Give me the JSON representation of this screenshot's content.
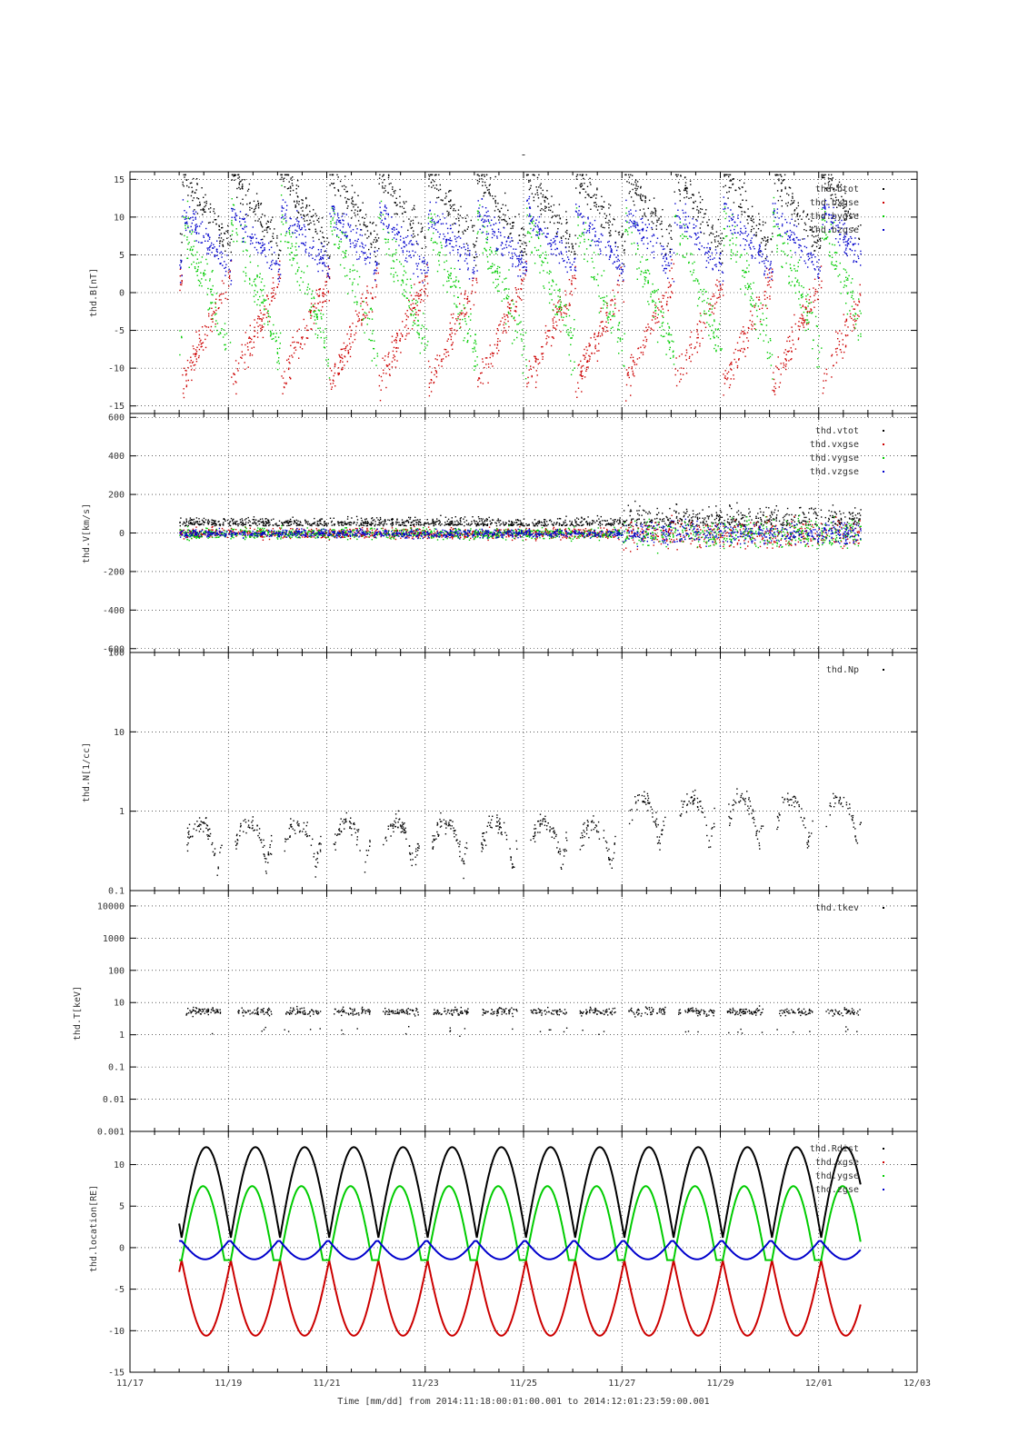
{
  "figure": {
    "title": "-",
    "x_axis": {
      "label": "Time [mm/dd]  from 2014:11:18:00:01:00.001  to  2014:12:01:23:59:00.001",
      "range_days_from_1117": [
        0,
        16
      ],
      "tick_labels": [
        "11/17",
        "11/19",
        "11/21",
        "11/23",
        "11/25",
        "11/27",
        "11/29",
        "12/01",
        "12/03"
      ],
      "minor_tick_step_hours": 12
    }
  },
  "colors": {
    "black": "#000000",
    "red": "#cc0000",
    "green": "#00cc00",
    "blue": "#0000cc"
  },
  "chart_data": [
    {
      "type": "scatter",
      "ylabel": "thd.B[nT]",
      "scale": "linear",
      "ylim": [
        -16,
        16
      ],
      "yticks": [
        15,
        10,
        5,
        0,
        -5,
        -10,
        -15
      ],
      "ytick_labels": [
        "15",
        "10",
        "5",
        "0",
        "-5",
        "-10",
        "-15"
      ],
      "grid": true,
      "legend_position": "top-right",
      "series": [
        {
          "name": "thd.btot",
          "color": "#000000",
          "model": "btot"
        },
        {
          "name": "thd.bxgse",
          "color": "#cc0000",
          "model": "bx"
        },
        {
          "name": "thd.bygse",
          "color": "#00cc00",
          "model": "by"
        },
        {
          "name": "thd.bzgse",
          "color": "#0000cc",
          "model": "bz"
        }
      ]
    },
    {
      "type": "scatter",
      "ylabel": "thd.V[km/s]",
      "scale": "linear",
      "ylim": [
        -620,
        620
      ],
      "yticks": [
        600,
        400,
        200,
        0,
        -200,
        -400,
        -600
      ],
      "ytick_labels": [
        "600",
        "400",
        "200",
        "0",
        "-200",
        "-400",
        "-600"
      ],
      "grid": true,
      "legend_position": "top-right",
      "series": [
        {
          "name": "thd.vtot",
          "color": "#000000",
          "model": "vtot"
        },
        {
          "name": "thd.vxgse",
          "color": "#cc0000",
          "model": "vx"
        },
        {
          "name": "thd.vygse",
          "color": "#00cc00",
          "model": "vy"
        },
        {
          "name": "thd.vzgse",
          "color": "#0000cc",
          "model": "vz"
        }
      ]
    },
    {
      "type": "scatter",
      "ylabel": "thd.N[1/cc]",
      "scale": "log",
      "ylim": [
        0.1,
        100
      ],
      "yticks": [
        100,
        10,
        1,
        0.1
      ],
      "ytick_labels": [
        "100",
        "10",
        "1",
        "0.1"
      ],
      "grid": true,
      "legend_position": "top-right",
      "series": [
        {
          "name": "thd.Np",
          "color": "#000000",
          "model": "np"
        }
      ]
    },
    {
      "type": "scatter",
      "ylabel": "thd.T[keV]",
      "scale": "log",
      "ylim": [
        0.001,
        30000
      ],
      "yticks": [
        10000,
        1000,
        100,
        10,
        1,
        0.1,
        0.01,
        0.001
      ],
      "ytick_labels": [
        "10000",
        "1000",
        "100",
        "10",
        "1",
        "0.1",
        "0.01",
        "0.001"
      ],
      "grid": true,
      "legend_position": "top-right",
      "series": [
        {
          "name": "thd.tkev",
          "color": "#000000",
          "model": "tkev"
        }
      ]
    },
    {
      "type": "line",
      "ylabel": "thd.location[RE]",
      "scale": "linear",
      "ylim": [
        -15,
        14
      ],
      "yticks": [
        10,
        5,
        0,
        -5,
        -10,
        -15
      ],
      "ytick_labels": [
        "10",
        "5",
        "0",
        "-5",
        "-10",
        "-15"
      ],
      "grid": true,
      "legend_position": "top-right",
      "orbit": {
        "period_days": 1.0,
        "first_perigee_day": 1.05,
        "last_day": 14.85,
        "start_day": 1.0
      },
      "series": [
        {
          "name": "thd.Rdist",
          "color": "#000000",
          "model": "rdist",
          "peak": 12.1
        },
        {
          "name": "thd.xgse",
          "color": "#cc0000",
          "model": "xgse",
          "trough": -10.6
        },
        {
          "name": "thd.ygse",
          "color": "#00cc00",
          "model": "ygse",
          "peak": 7.4
        },
        {
          "name": "thd.zgse",
          "color": "#0000cc",
          "model": "zgse",
          "peak": 0.8
        }
      ]
    }
  ]
}
